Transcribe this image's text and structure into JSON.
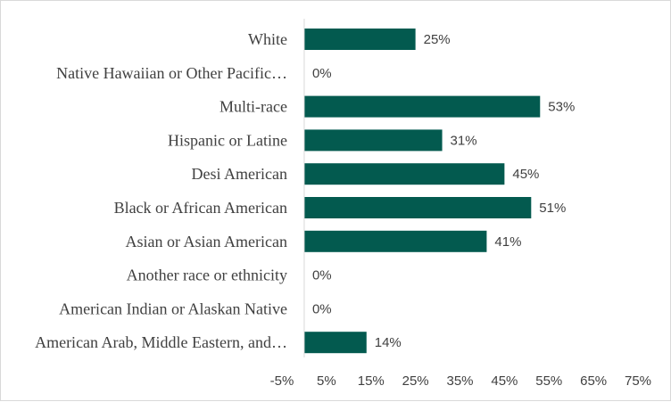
{
  "chart_data": {
    "type": "bar",
    "orientation": "horizontal",
    "categories": [
      "White",
      "Native Hawaiian or Other Pacific…",
      "Multi-race",
      "Hispanic or Latine",
      "Desi American",
      "Black or African American",
      "Asian or Asian American",
      "Another race or ethnicity",
      "American Indian or Alaskan Native",
      "American Arab, Middle Eastern, and…"
    ],
    "values": [
      25,
      0,
      53,
      31,
      45,
      51,
      41,
      0,
      0,
      14
    ],
    "data_labels": [
      "25%",
      "0%",
      "53%",
      "31%",
      "45%",
      "51%",
      "41%",
      "0%",
      "0%",
      "14%"
    ],
    "xlim": [
      -5,
      75
    ],
    "xticks": [
      -5,
      5,
      15,
      25,
      35,
      45,
      55,
      65,
      75
    ],
    "xtick_labels": [
      "-5%",
      "5%",
      "15%",
      "25%",
      "35%",
      "45%",
      "55%",
      "65%",
      "75%"
    ],
    "bar_color": "#035a4f",
    "grid": false,
    "legend": "none"
  }
}
